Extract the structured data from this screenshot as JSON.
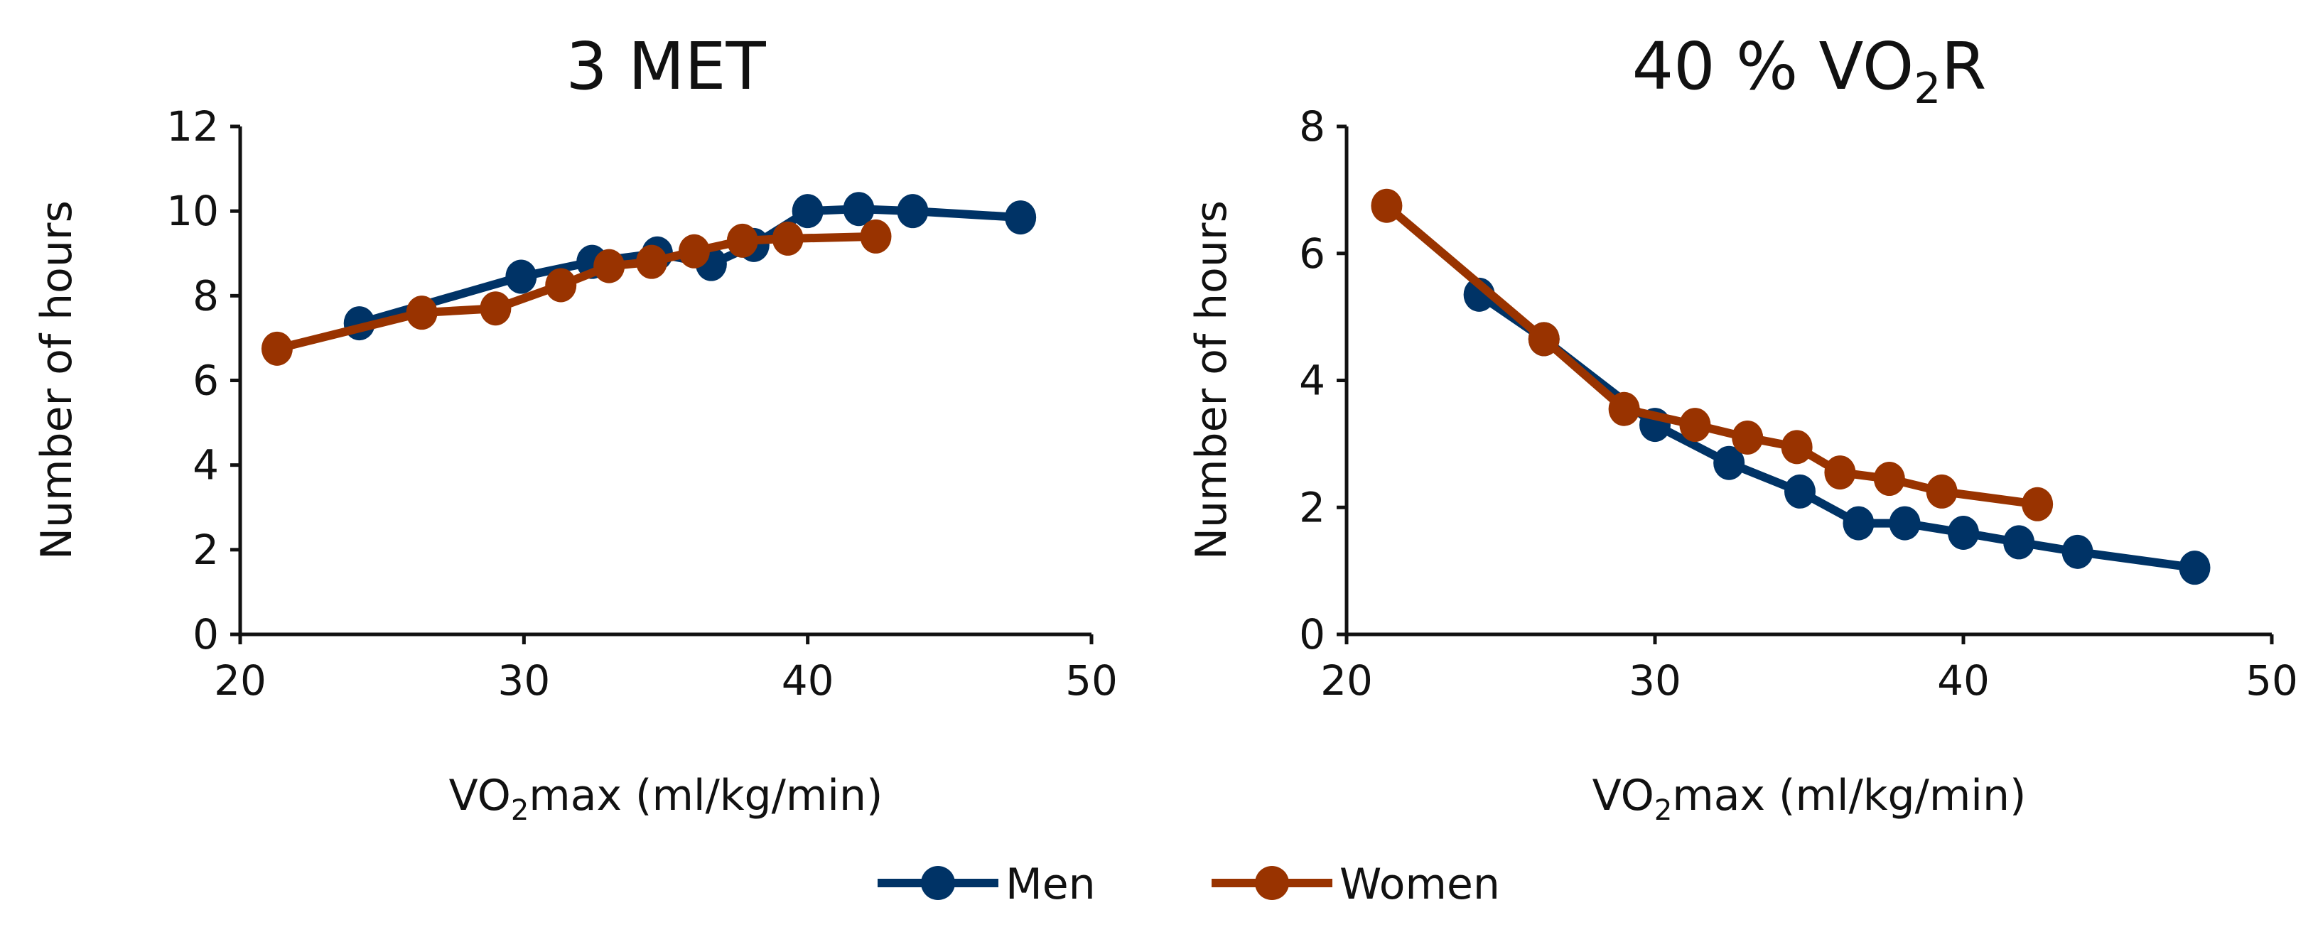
{
  "chart_data": [
    {
      "type": "line",
      "title": "3 MET",
      "xlabel": "VO2max (ml/kg/min)",
      "xlabel_main": "VO",
      "xlabel_sub": "2",
      "xlabel_rest": "max (ml/kg/min)",
      "ylabel": "Number of hours",
      "xlim": [
        20,
        50
      ],
      "ylim": [
        0,
        12
      ],
      "xticks": [
        20,
        30,
        40,
        50
      ],
      "yticks": [
        0,
        2,
        4,
        6,
        8,
        10,
        12
      ],
      "grid": false,
      "series": [
        {
          "name": "Men",
          "color": "#003366",
          "x": [
            24.2,
            29.9,
            32.4,
            34.7,
            36.6,
            38.1,
            40.0,
            41.8,
            43.7,
            47.5
          ],
          "y": [
            7.35,
            8.45,
            8.8,
            9.0,
            8.75,
            9.2,
            10.0,
            10.05,
            10.0,
            9.85
          ]
        },
        {
          "name": "Women",
          "color": "#993300",
          "x": [
            21.3,
            26.4,
            29.0,
            31.3,
            33.0,
            34.5,
            36.0,
            37.7,
            39.3,
            42.4
          ],
          "y": [
            6.75,
            7.6,
            7.7,
            8.25,
            8.7,
            8.8,
            9.05,
            9.3,
            9.35,
            9.4
          ]
        }
      ]
    },
    {
      "type": "line",
      "title": "40 % VO2R",
      "title_main": "40 % VO",
      "title_sub": "2",
      "title_rest": "R",
      "xlabel": "VO2max (ml/kg/min)",
      "xlabel_main": "VO",
      "xlabel_sub": "2",
      "xlabel_rest": "max (ml/kg/min)",
      "ylabel": "Number of hours",
      "xlim": [
        20,
        50
      ],
      "ylim": [
        0,
        8
      ],
      "xticks": [
        20,
        30,
        40,
        50
      ],
      "yticks": [
        0,
        2,
        4,
        6,
        8
      ],
      "grid": false,
      "series": [
        {
          "name": "Men",
          "color": "#003366",
          "x": [
            24.3,
            26.4,
            30.0,
            32.4,
            34.7,
            36.6,
            38.1,
            40.0,
            41.8,
            43.7,
            47.5
          ],
          "y": [
            5.35,
            4.65,
            3.3,
            2.7,
            2.25,
            1.75,
            1.75,
            1.6,
            1.45,
            1.3,
            1.05
          ]
        },
        {
          "name": "Women",
          "color": "#993300",
          "x": [
            21.3,
            26.4,
            29.0,
            31.3,
            33.0,
            34.6,
            36.0,
            37.6,
            39.3,
            42.4
          ],
          "y": [
            6.75,
            4.65,
            3.55,
            3.3,
            3.1,
            2.95,
            2.55,
            2.45,
            2.25,
            2.05
          ]
        }
      ]
    }
  ],
  "legend": {
    "placement": "bottom-center",
    "items": [
      "Men",
      "Women"
    ]
  }
}
